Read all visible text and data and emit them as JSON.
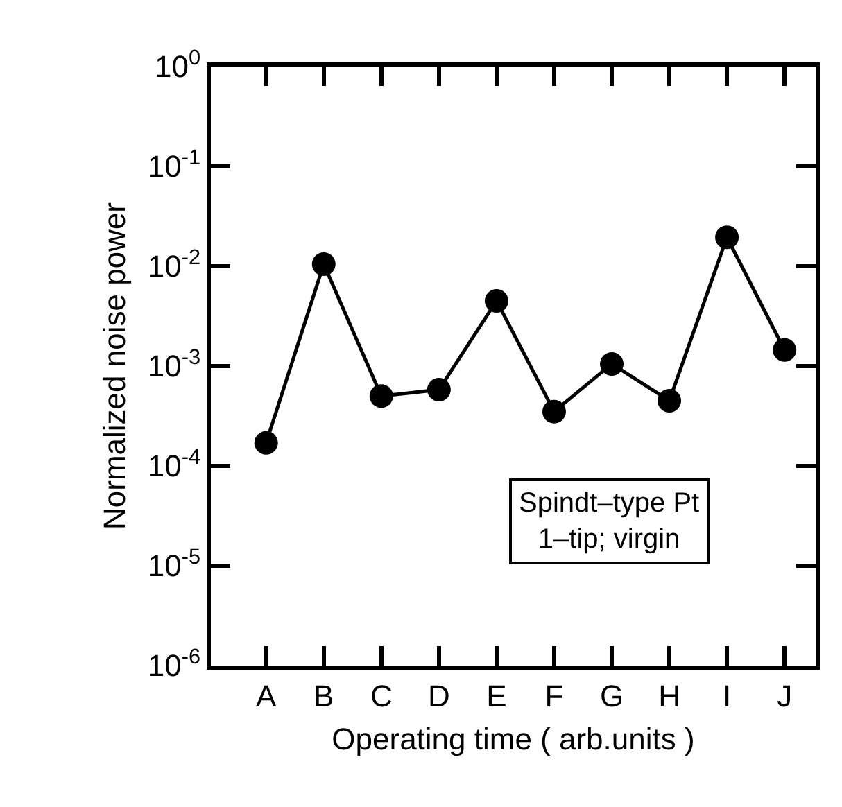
{
  "chart_data": {
    "type": "line",
    "xlabel": "Operating time ( arb.units )",
    "ylabel": "Normalized noise power",
    "categories": [
      "A",
      "B",
      "C",
      "D",
      "E",
      "F",
      "G",
      "H",
      "I",
      "J"
    ],
    "series": [
      {
        "color": "#000000",
        "values": [
          0.00017,
          0.0105,
          0.0005,
          0.00058,
          0.0045,
          0.00035,
          0.00105,
          0.00045,
          0.0195,
          0.00145
        ]
      }
    ],
    "log": true,
    "ylim": [
      1e-06,
      1
    ],
    "yticks": [
      {
        "value": 1e-06,
        "label": "10$^{-6}$"
      },
      {
        "value": 1e-05,
        "label": "10$^{-5}$"
      },
      {
        "value": 0.0001,
        "label": "10$^{-4}$"
      },
      {
        "value": 0.001,
        "label": "10$^{-3}$"
      },
      {
        "value": 0.01,
        "label": "10$^{-2}$"
      },
      {
        "value": 0.1,
        "label": "10$^{-1}$"
      },
      {
        "value": 1,
        "label": "10$^{0}$"
      }
    ],
    "marker": "circle",
    "line_style": "solid",
    "annotations": [
      "Spindt–type Pt\n1–tip; virgin"
    ]
  }
}
